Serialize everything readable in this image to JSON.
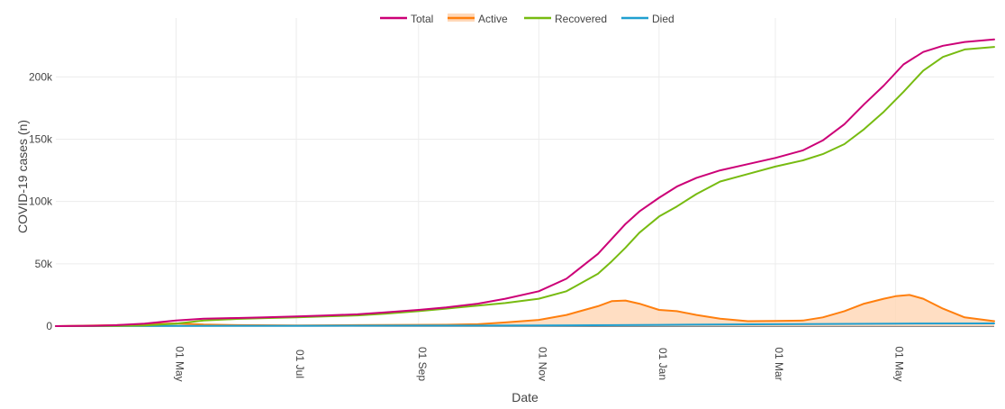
{
  "chart_data": {
    "type": "line",
    "xlabel": "Date",
    "ylabel": "COVID-19 cases (n)",
    "xlim": [
      "2020-03-01",
      "2021-06-20"
    ],
    "ylim": [
      0,
      240000
    ],
    "x_ticks": [
      {
        "date": "2020-05-01",
        "label": "01 May"
      },
      {
        "date": "2020-07-01",
        "label": "01 Jul"
      },
      {
        "date": "2020-09-01",
        "label": "01 Sep"
      },
      {
        "date": "2020-11-01",
        "label": "01 Nov"
      },
      {
        "date": "2021-01-01",
        "label": "01 Jan"
      },
      {
        "date": "2021-03-01",
        "label": "01 Mar"
      },
      {
        "date": "2021-05-01",
        "label": "01 May"
      }
    ],
    "y_ticks": [
      {
        "value": 0,
        "label": "0"
      },
      {
        "value": 50000,
        "label": "50k"
      },
      {
        "value": 100000,
        "label": "100k"
      },
      {
        "value": 150000,
        "label": "150k"
      },
      {
        "value": 200000,
        "label": "200k"
      }
    ],
    "grid": true,
    "legend_position": "top-center",
    "series": [
      {
        "name": "Total",
        "color": "#cc0077",
        "fill": false,
        "points": [
          [
            "2020-03-01",
            0
          ],
          [
            "2020-03-20",
            300
          ],
          [
            "2020-04-01",
            800
          ],
          [
            "2020-04-15",
            2000
          ],
          [
            "2020-05-01",
            4500
          ],
          [
            "2020-05-15",
            6000
          ],
          [
            "2020-06-01",
            6500
          ],
          [
            "2020-06-15",
            7000
          ],
          [
            "2020-07-01",
            7800
          ],
          [
            "2020-07-15",
            8500
          ],
          [
            "2020-08-01",
            9500
          ],
          [
            "2020-08-15",
            11000
          ],
          [
            "2020-09-01",
            13000
          ],
          [
            "2020-09-15",
            15000
          ],
          [
            "2020-10-01",
            18000
          ],
          [
            "2020-10-15",
            22000
          ],
          [
            "2020-11-01",
            28000
          ],
          [
            "2020-11-15",
            38000
          ],
          [
            "2020-12-01",
            58000
          ],
          [
            "2020-12-08",
            70000
          ],
          [
            "2020-12-15",
            82000
          ],
          [
            "2020-12-22",
            92000
          ],
          [
            "2021-01-01",
            103000
          ],
          [
            "2021-01-10",
            112000
          ],
          [
            "2021-01-20",
            119000
          ],
          [
            "2021-02-01",
            125000
          ],
          [
            "2021-02-15",
            130000
          ],
          [
            "2021-03-01",
            135000
          ],
          [
            "2021-03-15",
            141000
          ],
          [
            "2021-03-25",
            149000
          ],
          [
            "2021-04-05",
            162000
          ],
          [
            "2021-04-15",
            178000
          ],
          [
            "2021-04-25",
            193000
          ],
          [
            "2021-05-05",
            210000
          ],
          [
            "2021-05-15",
            220000
          ],
          [
            "2021-05-25",
            225000
          ],
          [
            "2021-06-05",
            228000
          ],
          [
            "2021-06-20",
            230000
          ]
        ]
      },
      {
        "name": "Active",
        "color": "#ff7f0e",
        "fill": true,
        "fill_color": "#ffd8b8",
        "points": [
          [
            "2020-03-01",
            0
          ],
          [
            "2020-04-01",
            800
          ],
          [
            "2020-04-15",
            1500
          ],
          [
            "2020-05-01",
            2200
          ],
          [
            "2020-05-15",
            1200
          ],
          [
            "2020-06-01",
            800
          ],
          [
            "2020-07-01",
            600
          ],
          [
            "2020-08-01",
            800
          ],
          [
            "2020-09-01",
            1000
          ],
          [
            "2020-09-15",
            1100
          ],
          [
            "2020-10-01",
            1500
          ],
          [
            "2020-10-15",
            3000
          ],
          [
            "2020-11-01",
            5000
          ],
          [
            "2020-11-15",
            9000
          ],
          [
            "2020-12-01",
            16000
          ],
          [
            "2020-12-08",
            20000
          ],
          [
            "2020-12-15",
            20500
          ],
          [
            "2020-12-22",
            18000
          ],
          [
            "2021-01-01",
            13000
          ],
          [
            "2021-01-10",
            12000
          ],
          [
            "2021-01-20",
            9000
          ],
          [
            "2021-02-01",
            6000
          ],
          [
            "2021-02-15",
            4000
          ],
          [
            "2021-03-01",
            4200
          ],
          [
            "2021-03-15",
            4500
          ],
          [
            "2021-03-25",
            7000
          ],
          [
            "2021-04-05",
            12000
          ],
          [
            "2021-04-15",
            18000
          ],
          [
            "2021-04-25",
            22000
          ],
          [
            "2021-05-01",
            24000
          ],
          [
            "2021-05-08",
            25000
          ],
          [
            "2021-05-15",
            22000
          ],
          [
            "2021-05-25",
            14000
          ],
          [
            "2021-06-05",
            7000
          ],
          [
            "2021-06-20",
            4000
          ]
        ]
      },
      {
        "name": "Recovered",
        "color": "#77bb11",
        "fill": false,
        "points": [
          [
            "2020-03-01",
            0
          ],
          [
            "2020-04-01",
            200
          ],
          [
            "2020-04-15",
            600
          ],
          [
            "2020-05-01",
            2000
          ],
          [
            "2020-05-15",
            4500
          ],
          [
            "2020-06-01",
            5800
          ],
          [
            "2020-06-15",
            6400
          ],
          [
            "2020-07-01",
            7000
          ],
          [
            "2020-07-15",
            7700
          ],
          [
            "2020-08-01",
            8600
          ],
          [
            "2020-08-15",
            10000
          ],
          [
            "2020-09-01",
            12000
          ],
          [
            "2020-09-15",
            14000
          ],
          [
            "2020-10-01",
            16500
          ],
          [
            "2020-10-15",
            18500
          ],
          [
            "2020-11-01",
            22000
          ],
          [
            "2020-11-15",
            28000
          ],
          [
            "2020-12-01",
            42000
          ],
          [
            "2020-12-08",
            52000
          ],
          [
            "2020-12-15",
            63000
          ],
          [
            "2020-12-22",
            75000
          ],
          [
            "2021-01-01",
            88000
          ],
          [
            "2021-01-10",
            96000
          ],
          [
            "2021-01-20",
            106000
          ],
          [
            "2021-02-01",
            116000
          ],
          [
            "2021-02-15",
            122000
          ],
          [
            "2021-03-01",
            128000
          ],
          [
            "2021-03-15",
            133000
          ],
          [
            "2021-03-25",
            138000
          ],
          [
            "2021-04-05",
            146000
          ],
          [
            "2021-04-15",
            158000
          ],
          [
            "2021-04-25",
            172000
          ],
          [
            "2021-05-05",
            188000
          ],
          [
            "2021-05-15",
            205000
          ],
          [
            "2021-05-25",
            216000
          ],
          [
            "2021-06-05",
            222000
          ],
          [
            "2021-06-20",
            224000
          ]
        ]
      },
      {
        "name": "Died",
        "color": "#1f9fd0",
        "fill": false,
        "points": [
          [
            "2020-03-01",
            0
          ],
          [
            "2020-05-01",
            200
          ],
          [
            "2020-07-01",
            300
          ],
          [
            "2020-09-01",
            400
          ],
          [
            "2020-11-01",
            500
          ],
          [
            "2021-01-01",
            1000
          ],
          [
            "2021-03-01",
            1500
          ],
          [
            "2021-05-01",
            2000
          ],
          [
            "2021-06-20",
            2200
          ]
        ]
      }
    ]
  }
}
